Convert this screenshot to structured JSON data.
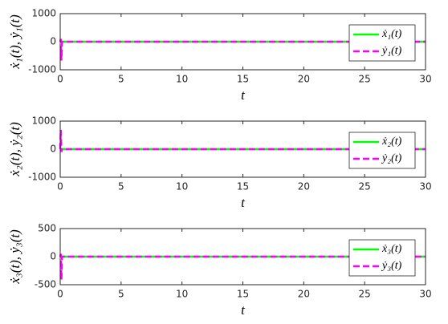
{
  "chart_data": [
    {
      "type": "line",
      "xlabel": "t",
      "ylabel": "ẋ₁(t), ẏ₁(t)",
      "x": [
        0,
        0.05,
        0.1,
        0.15,
        0.2,
        1,
        30
      ],
      "series": [
        {
          "name": "ẋ₁(t)",
          "color": "#00ff00",
          "dash": "solid",
          "values": [
            0,
            0,
            0,
            0,
            0,
            0,
            0
          ]
        },
        {
          "name": "ẏ₁(t)",
          "color": "#ff00ff",
          "dash": "dashed",
          "values": [
            0,
            100,
            -670,
            0,
            0,
            0,
            0
          ]
        }
      ],
      "xlim": [
        0,
        30
      ],
      "xticks": [
        0,
        5,
        10,
        15,
        20,
        25,
        30
      ],
      "ylim": [
        -1000,
        1000
      ],
      "yticks": [
        -1000,
        0,
        1000
      ],
      "legend": "northeast"
    },
    {
      "type": "line",
      "xlabel": "t",
      "ylabel": "ẋ₂(t), ẏ₂(t)",
      "x": [
        0,
        0.05,
        0.1,
        0.15,
        0.2,
        1,
        30
      ],
      "series": [
        {
          "name": "ẋ₂(t)",
          "color": "#00ff00",
          "dash": "solid",
          "values": [
            0,
            0,
            0,
            0,
            0,
            0,
            0
          ]
        },
        {
          "name": "ẏ₂(t)",
          "color": "#ff00ff",
          "dash": "dashed",
          "values": [
            0,
            690,
            -100,
            0,
            0,
            0,
            0
          ]
        }
      ],
      "xlim": [
        0,
        30
      ],
      "xticks": [
        0,
        5,
        10,
        15,
        20,
        25,
        30
      ],
      "ylim": [
        -1000,
        1000
      ],
      "yticks": [
        -1000,
        0,
        1000
      ],
      "legend": "northeast"
    },
    {
      "type": "line",
      "xlabel": "t",
      "ylabel": "ẋ₃(t), ẏ₃(t)",
      "x": [
        0,
        0.05,
        0.1,
        0.15,
        0.2,
        1,
        30
      ],
      "series": [
        {
          "name": "ẋ₃(t)",
          "color": "#00ff00",
          "dash": "solid",
          "values": [
            0,
            0,
            0,
            0,
            0,
            0,
            0
          ]
        },
        {
          "name": "ẏ₃(t)",
          "color": "#ff00ff",
          "dash": "dashed",
          "values": [
            0,
            50,
            -410,
            0,
            0,
            0,
            0
          ]
        }
      ],
      "xlim": [
        0,
        30
      ],
      "xticks": [
        0,
        5,
        10,
        15,
        20,
        25,
        30
      ],
      "ylim": [
        -500,
        500
      ],
      "yticks": [
        -500,
        0,
        500
      ],
      "legend": "northeast"
    }
  ]
}
